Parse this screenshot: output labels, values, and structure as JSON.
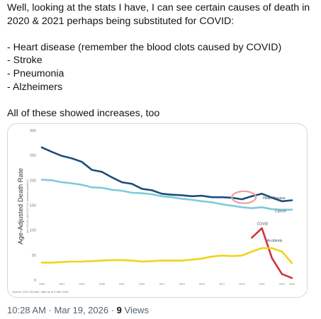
{
  "tweet": {
    "text": "Well, looking at the stats I have, I can see certain causes of death in 2020 & 2021 perhaps being substituted for COVID:\n\n- Heart disease (remember the blood clots caused by COVID)\n- Stroke\n- Pneumonia\n- Alzheimers\n\nAll of these showed increases, too",
    "timestamp": "10:28 AM · Mar 19, 2026",
    "separator": " · ",
    "views_count": "9",
    "views_label": " Views"
  },
  "colors": {
    "heart_disease": "#1b4f7c",
    "cancer": "#7ecbd9",
    "covid": "#d2323c",
    "accidents": "#f2d21b",
    "highlight": "#e8a2a0",
    "axis_text": "#7a7a7a"
  },
  "chart_data": {
    "type": "line",
    "title": "",
    "ylabel": "Age-Adjusted Death Rate",
    "ylabel_sub": "(per 100,000, year 2000 U.S. standard population)",
    "ylim": [
      0,
      300
    ],
    "yticks": [
      "300",
      "250",
      "200",
      "150",
      "100",
      "50",
      "0"
    ],
    "ytick_values": [
      300,
      250,
      200,
      150,
      100,
      50,
      0
    ],
    "xlim": [
      1999,
      2024
    ],
    "xticks": [
      "1999",
      "2001",
      "2003",
      "2005",
      "2007",
      "2009",
      "2011",
      "2013",
      "2015",
      "2017",
      "2019",
      "2021",
      "2023",
      "2024"
    ],
    "xtick_values": [
      1999,
      2001,
      2003,
      2005,
      2007,
      2009,
      2011,
      2013,
      2015,
      2017,
      2019,
      2021,
      2023,
      2024
    ],
    "grid": false,
    "source": "Source: CDC Wonder, data as of 3 Mar 2026",
    "series": [
      {
        "name": "Heart Disease",
        "x": [
          1999,
          2000,
          2001,
          2002,
          2003,
          2004,
          2005,
          2006,
          2007,
          2008,
          2009,
          2010,
          2011,
          2012,
          2013,
          2014,
          2015,
          2016,
          2017,
          2018,
          2019,
          2020,
          2021,
          2022,
          2023,
          2024
        ],
        "y": [
          266,
          257,
          249,
          244,
          237,
          221,
          217,
          206,
          196,
          193,
          183,
          180,
          173,
          171,
          170,
          168,
          169,
          166,
          166,
          165,
          162,
          168,
          173,
          165,
          158,
          160
        ]
      },
      {
        "name": "Cancer",
        "x": [
          1999,
          2000,
          2001,
          2002,
          2003,
          2004,
          2005,
          2006,
          2007,
          2008,
          2009,
          2010,
          2011,
          2012,
          2013,
          2014,
          2015,
          2016,
          2017,
          2018,
          2019,
          2020,
          2021,
          2022,
          2023,
          2024
        ],
        "y": [
          201,
          200,
          196,
          194,
          191,
          186,
          185,
          181,
          179,
          175,
          174,
          172,
          168,
          166,
          163,
          161,
          158,
          156,
          152,
          149,
          146,
          144,
          146,
          142,
          141,
          141
        ]
      },
      {
        "name": "COVID",
        "x": [
          2020,
          2021,
          2022,
          2023,
          2024
        ],
        "y": [
          85,
          104,
          44,
          12,
          4
        ]
      },
      {
        "name": "Accidents",
        "x": [
          1999,
          2000,
          2001,
          2002,
          2003,
          2004,
          2005,
          2006,
          2007,
          2008,
          2009,
          2010,
          2011,
          2012,
          2013,
          2014,
          2015,
          2016,
          2017,
          2018,
          2019,
          2020,
          2021,
          2022,
          2023,
          2024
        ],
        "y": [
          35,
          35,
          36,
          37,
          37,
          38,
          39,
          40,
          40,
          39,
          37,
          38,
          39,
          39,
          39,
          41,
          43,
          47,
          49,
          48,
          49,
          57,
          64,
          64,
          57,
          34
        ]
      }
    ],
    "annotations": [
      {
        "series": "Heart Disease",
        "text": "Heart Disease",
        "at": [
          2021.1,
          162
        ]
      },
      {
        "series": "Cancer",
        "text": "Cancer",
        "at": [
          2022.3,
          136
        ]
      },
      {
        "series": "COVID",
        "text": "COVID",
        "at": [
          2020.5,
          110
        ]
      },
      {
        "series": "Accidents",
        "text": "Accidents",
        "at": [
          2021.5,
          77
        ]
      }
    ],
    "highlight": {
      "shape": "ellipse",
      "center": [
        2019.2,
        166
      ],
      "radius_x_years": 1.2,
      "radius_y": 12
    }
  }
}
